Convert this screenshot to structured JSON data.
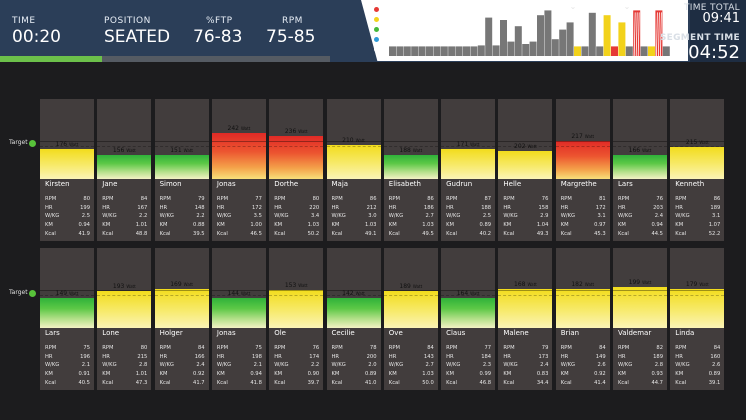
{
  "header": {
    "metrics": [
      {
        "label": "TIME",
        "value": "00:20"
      },
      {
        "label": "POSITION",
        "value": "SEATED"
      },
      {
        "label": "%FTP",
        "value": "76-83"
      },
      {
        "label": "RPM",
        "value": "75-85"
      }
    ],
    "progress_fraction": 0.31,
    "time_total_label": "TIME TOTAL",
    "time_total_value": "09:41",
    "segment_time_label": "SEGMENT TIME",
    "segment_time_value": "04:52"
  },
  "segments": {
    "legend_colors": [
      "#e53935",
      "#f2d21b",
      "#44b839",
      "#2f9bd8",
      "#ffffff"
    ],
    "bars": [
      {
        "color": "#777777",
        "level": 0.2,
        "stripe": false
      },
      {
        "color": "#777777",
        "level": 0.2,
        "stripe": false
      },
      {
        "color": "#777777",
        "level": 0.2,
        "stripe": false
      },
      {
        "color": "#777777",
        "level": 0.2,
        "stripe": false
      },
      {
        "color": "#777777",
        "level": 0.2,
        "stripe": false
      },
      {
        "color": "#777777",
        "level": 0.2,
        "stripe": false
      },
      {
        "color": "#777777",
        "level": 0.2,
        "stripe": false
      },
      {
        "color": "#777777",
        "level": 0.2,
        "stripe": false
      },
      {
        "color": "#777777",
        "level": 0.2,
        "stripe": false
      },
      {
        "color": "#777777",
        "level": 0.2,
        "stripe": false
      },
      {
        "color": "#777777",
        "level": 0.2,
        "stripe": false
      },
      {
        "color": "#777777",
        "level": 0.2,
        "stripe": false
      },
      {
        "color": "#777777",
        "level": 0.22,
        "stripe": false
      },
      {
        "color": "#777777",
        "level": 0.8,
        "stripe": false
      },
      {
        "color": "#777777",
        "level": 0.22,
        "stripe": false
      },
      {
        "color": "#777777",
        "level": 0.75,
        "stripe": false
      },
      {
        "color": "#777777",
        "level": 0.3,
        "stripe": false
      },
      {
        "color": "#777777",
        "level": 0.62,
        "stripe": false
      },
      {
        "color": "#777777",
        "level": 0.25,
        "stripe": false
      },
      {
        "color": "#777777",
        "level": 0.3,
        "stripe": false
      },
      {
        "color": "#777777",
        "level": 0.85,
        "stripe": false
      },
      {
        "color": "#777777",
        "level": 0.95,
        "stripe": false
      },
      {
        "color": "#777777",
        "level": 0.35,
        "stripe": false
      },
      {
        "color": "#777777",
        "level": 0.55,
        "stripe": false
      },
      {
        "color": "#777777",
        "level": 0.7,
        "stripe": false
      },
      {
        "color": "#f2d21b",
        "level": 0.2,
        "stripe": false
      },
      {
        "color": "#777777",
        "level": 0.2,
        "stripe": false
      },
      {
        "color": "#777777",
        "level": 0.9,
        "stripe": false
      },
      {
        "color": "#777777",
        "level": 0.2,
        "stripe": false
      },
      {
        "color": "#f2d21b",
        "level": 0.85,
        "stripe": false
      },
      {
        "color": "#e53935",
        "level": 0.2,
        "stripe": false
      },
      {
        "color": "#f2d21b",
        "level": 0.7,
        "stripe": false
      },
      {
        "color": "#777777",
        "level": 0.2,
        "stripe": false
      },
      {
        "color": "#e53935",
        "level": 0.95,
        "stripe": true
      },
      {
        "color": "#777777",
        "level": 0.2,
        "stripe": false
      },
      {
        "color": "#f2d21b",
        "level": 0.2,
        "stripe": false
      },
      {
        "color": "#e53935",
        "level": 0.95,
        "stripe": true
      },
      {
        "color": "#777777",
        "level": 0.2,
        "stripe": false
      }
    ]
  },
  "target_label": "Target",
  "watt_unit": "Watt",
  "stat_labels": [
    "RPM",
    "HR",
    "W/KG",
    "KM",
    "Kcal"
  ],
  "rows": [
    {
      "riders": [
        {
          "name": "Kirsten",
          "watt": "176",
          "zone": "yellow",
          "level": 0.38,
          "stats": [
            "80",
            "199",
            "2.5",
            "0.94",
            "41.9"
          ]
        },
        {
          "name": "Jane",
          "watt": "156",
          "zone": "green",
          "level": 0.3,
          "stats": [
            "84",
            "167",
            "2.2",
            "1.01",
            "48.8"
          ]
        },
        {
          "name": "Simon",
          "watt": "151",
          "zone": "green",
          "level": 0.3,
          "stats": [
            "79",
            "148",
            "2.2",
            "0.88",
            "39.5"
          ]
        },
        {
          "name": "Jonas",
          "watt": "242",
          "zone": "red",
          "level": 0.57,
          "stats": [
            "77",
            "172",
            "3.5",
            "1.00",
            "46.5"
          ]
        },
        {
          "name": "Dorthe",
          "watt": "236",
          "zone": "red",
          "level": 0.54,
          "stats": [
            "80",
            "220",
            "3.4",
            "1.03",
            "50.2"
          ]
        },
        {
          "name": "Maja",
          "watt": "210",
          "zone": "yellow",
          "level": 0.43,
          "stats": [
            "86",
            "212",
            "3.0",
            "1.03",
            "49.1"
          ]
        },
        {
          "name": "Elisabeth",
          "watt": "188",
          "zone": "green",
          "level": 0.3,
          "stats": [
            "86",
            "186",
            "2.7",
            "1.03",
            "49.5"
          ]
        },
        {
          "name": "Gudrun",
          "watt": "171",
          "zone": "yellow",
          "level": 0.38,
          "stats": [
            "87",
            "188",
            "2.5",
            "0.89",
            "40.2"
          ]
        },
        {
          "name": "Helle",
          "watt": "202",
          "zone": "yellow",
          "level": 0.35,
          "stats": [
            "76",
            "158",
            "2.9",
            "1.04",
            "49.3"
          ]
        },
        {
          "name": "Margrethe",
          "watt": "217",
          "zone": "red",
          "level": 0.48,
          "stats": [
            "81",
            "172",
            "3.1",
            "0.97",
            "45.3"
          ]
        },
        {
          "name": "Lars",
          "watt": "166",
          "zone": "green",
          "level": 0.3,
          "stats": [
            "76",
            "203",
            "2.4",
            "0.94",
            "44.5"
          ]
        },
        {
          "name": "Kenneth",
          "watt": "215",
          "zone": "yellow",
          "level": 0.4,
          "stats": [
            "86",
            "189",
            "3.1",
            "1.07",
            "52.2"
          ]
        }
      ]
    },
    {
      "riders": [
        {
          "name": "Lars",
          "watt": "149",
          "zone": "green",
          "level": 0.37,
          "stats": [
            "75",
            "196",
            "2.1",
            "0.91",
            "40.5"
          ]
        },
        {
          "name": "Lone",
          "watt": "193",
          "zone": "yellow",
          "level": 0.46,
          "stats": [
            "80",
            "215",
            "2.8",
            "1.01",
            "47.3"
          ]
        },
        {
          "name": "Holger",
          "watt": "169",
          "zone": "yellow",
          "level": 0.49,
          "stats": [
            "84",
            "166",
            "2.4",
            "0.92",
            "41.7"
          ]
        },
        {
          "name": "Jonas",
          "watt": "144",
          "zone": "green",
          "level": 0.37,
          "stats": [
            "75",
            "198",
            "2.1",
            "0.94",
            "41.8"
          ]
        },
        {
          "name": "Ole",
          "watt": "153",
          "zone": "yellow",
          "level": 0.47,
          "stats": [
            "76",
            "174",
            "2.2",
            "0.90",
            "39.7"
          ]
        },
        {
          "name": "Cecilie",
          "watt": "142",
          "zone": "green",
          "level": 0.37,
          "stats": [
            "78",
            "200",
            "2.0",
            "0.89",
            "41.0"
          ]
        },
        {
          "name": "Ove",
          "watt": "189",
          "zone": "yellow",
          "level": 0.46,
          "stats": [
            "84",
            "143",
            "2.7",
            "1.03",
            "50.0"
          ]
        },
        {
          "name": "Claus",
          "watt": "164",
          "zone": "green",
          "level": 0.37,
          "stats": [
            "77",
            "184",
            "2.3",
            "0.99",
            "46.8"
          ]
        },
        {
          "name": "Malene",
          "watt": "168",
          "zone": "yellow",
          "level": 0.49,
          "stats": [
            "79",
            "173",
            "2.4",
            "0.83",
            "34.4"
          ]
        },
        {
          "name": "Brian",
          "watt": "182",
          "zone": "yellow",
          "level": 0.49,
          "stats": [
            "84",
            "149",
            "2.6",
            "0.92",
            "41.4"
          ]
        },
        {
          "name": "Valdemar",
          "watt": "199",
          "zone": "yellow",
          "level": 0.51,
          "stats": [
            "82",
            "189",
            "2.8",
            "0.93",
            "44.7"
          ]
        },
        {
          "name": "Linda",
          "watt": "179",
          "zone": "yellow",
          "level": 0.49,
          "stats": [
            "84",
            "160",
            "2.6",
            "0.89",
            "39.1"
          ]
        }
      ]
    }
  ]
}
